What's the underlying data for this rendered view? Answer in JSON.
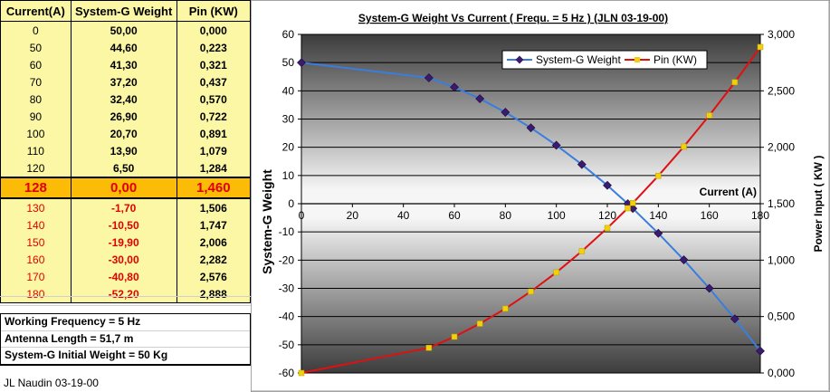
{
  "table": {
    "headers": [
      "Current(A)",
      "System-G Weight",
      "Pin (KW)"
    ],
    "rows": [
      {
        "current": "0",
        "weight": "50,00",
        "pin": "0,000"
      },
      {
        "current": "50",
        "weight": "44,60",
        "pin": "0,223"
      },
      {
        "current": "60",
        "weight": "41,30",
        "pin": "0,321"
      },
      {
        "current": "70",
        "weight": "37,20",
        "pin": "0,437"
      },
      {
        "current": "80",
        "weight": "32,40",
        "pin": "0,570"
      },
      {
        "current": "90",
        "weight": "26,90",
        "pin": "0,722"
      },
      {
        "current": "100",
        "weight": "20,70",
        "pin": "0,891"
      },
      {
        "current": "110",
        "weight": "13,90",
        "pin": "1,079"
      },
      {
        "current": "120",
        "weight": "6,50",
        "pin": "1,284"
      },
      {
        "current": "128",
        "weight": "0,00",
        "pin": "1,460"
      },
      {
        "current": "130",
        "weight": "-1,70",
        "pin": "1,506"
      },
      {
        "current": "140",
        "weight": "-10,50",
        "pin": "1,747"
      },
      {
        "current": "150",
        "weight": "-19,90",
        "pin": "2,006"
      },
      {
        "current": "160",
        "weight": "-30,00",
        "pin": "2,282"
      },
      {
        "current": "170",
        "weight": "-40,80",
        "pin": "2,576"
      },
      {
        "current": "180",
        "weight": "-52,20",
        "pin": "2,888"
      }
    ],
    "highlight_row": 9,
    "highlight_color": "#fbbb06",
    "cell_color": "#fbf7a4",
    "negative_color": "#e00000"
  },
  "info": {
    "lines": [
      "Working Frequency = 5 Hz",
      "Antenna Length = 51,7 m",
      "System-G Initial Weight = 50 Kg"
    ]
  },
  "footer": {
    "signature": "JL Naudin 03-19-00"
  },
  "chart_data": {
    "type": "line",
    "title": "System-G Weight Vs Current ( Frequ. = 5 Hz ) (JLN 03-19-00)",
    "xlabel": "Current (A)",
    "ylabel": "System-G Weight",
    "y2label": "Power Input ( KW )",
    "x": [
      0,
      50,
      60,
      70,
      80,
      90,
      100,
      110,
      120,
      128,
      130,
      140,
      150,
      160,
      170,
      180
    ],
    "xlim": [
      0,
      180
    ],
    "xticks": [
      0,
      20,
      40,
      60,
      80,
      100,
      120,
      140,
      160,
      180
    ],
    "xtick_labels": [
      "0",
      "20",
      "40",
      "60",
      "80",
      "100",
      "120",
      "140",
      "160",
      "180"
    ],
    "ylim": [
      -60,
      60
    ],
    "yticks": [
      60,
      50,
      40,
      30,
      20,
      10,
      0,
      -10,
      -20,
      -30,
      -40,
      -50,
      -60
    ],
    "ytick_labels": [
      "60",
      "50",
      "40",
      "30",
      "20",
      "10",
      "0",
      "-10",
      "-20",
      "-30",
      "-40",
      "-50",
      "-60"
    ],
    "y2lim": [
      0,
      3
    ],
    "y2ticks": [
      3,
      2.5,
      2,
      1.5,
      1,
      0.5,
      0
    ],
    "y2tick_labels": [
      "3,000",
      "2,500",
      "2,000",
      "1,500",
      "1,000",
      "0,500",
      "0,000"
    ],
    "legend_position": "top",
    "grid": true,
    "series": [
      {
        "name": "System-G Weight",
        "axis": "left",
        "color": "#3a7de0",
        "marker": "diamond",
        "marker_color": "#3c1a6e",
        "values": [
          50,
          44.6,
          41.3,
          37.2,
          32.4,
          26.9,
          20.7,
          13.9,
          6.5,
          0,
          -1.7,
          -10.5,
          -19.9,
          -30,
          -40.8,
          -52.2
        ]
      },
      {
        "name": "Pin (KW)",
        "axis": "right",
        "color": "#e01010",
        "marker": "square",
        "marker_color": "#f2d10a",
        "values": [
          0,
          0.223,
          0.321,
          0.437,
          0.57,
          0.722,
          0.891,
          1.079,
          1.284,
          1.46,
          1.506,
          1.747,
          2.006,
          2.282,
          2.576,
          2.888
        ]
      }
    ]
  }
}
